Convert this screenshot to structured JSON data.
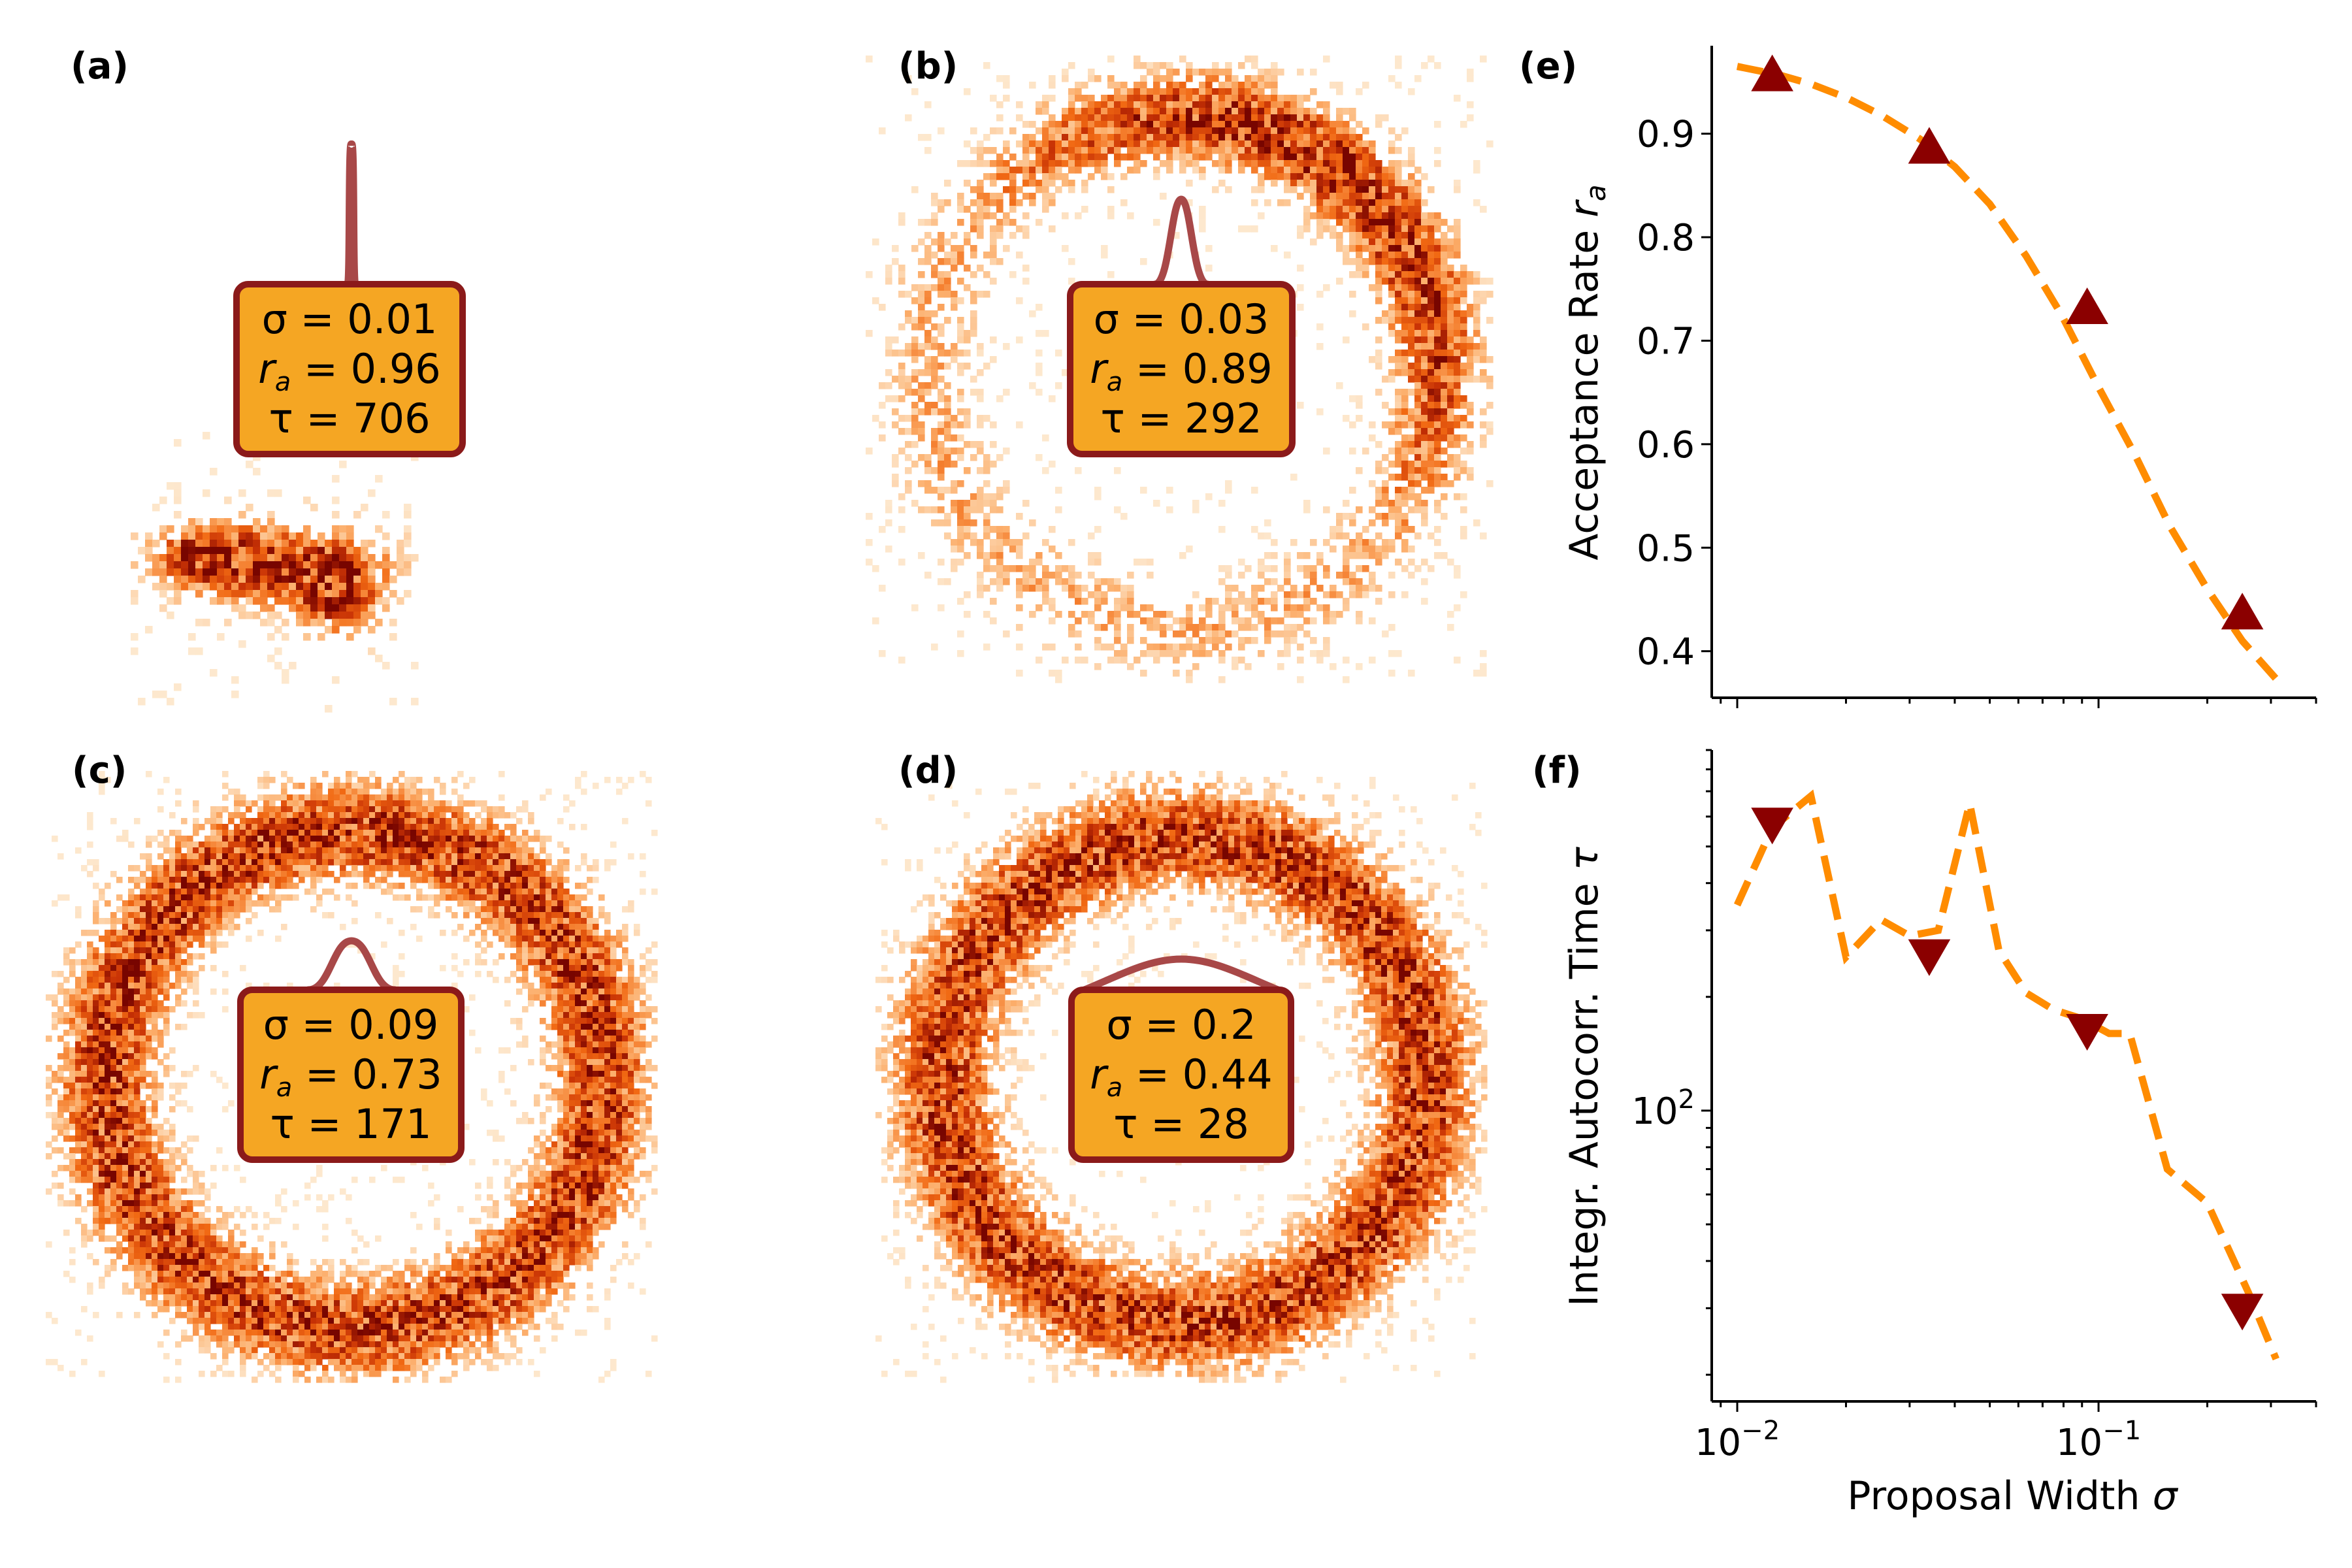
{
  "colors": {
    "heat_light": "#fde2c4",
    "heat_mid": "#f4781e",
    "heat_dark": "#5c0000",
    "box_fill": "#f5a623",
    "box_border": "#8b1a1a",
    "proposal_curve": "#a84848",
    "dashed_line": "#ff8c00",
    "marker": "#8b0000"
  },
  "panels": [
    {
      "letter": "(a)",
      "sigma": "σ = 0.01",
      "ra": "r",
      "ra_sub": "a",
      "ra_val": " = 0.96",
      "tau": "τ = 706"
    },
    {
      "letter": "(b)",
      "sigma": "σ = 0.03",
      "ra": "r",
      "ra_sub": "a",
      "ra_val": " = 0.89",
      "tau": "τ = 292"
    },
    {
      "letter": "(c)",
      "sigma": "σ = 0.09",
      "ra": "r",
      "ra_sub": "a",
      "ra_val": " = 0.73",
      "tau": "τ = 171"
    },
    {
      "letter": "(d)",
      "sigma": "σ = 0.2",
      "ra": "r",
      "ra_sub": "a",
      "ra_val": " = 0.44",
      "tau": "τ = 28"
    }
  ],
  "chart_data": [
    {
      "panel": "(e)",
      "type": "line",
      "x_scale": "log",
      "xlim": [
        0.0085,
        0.4
      ],
      "ylabel": "Acceptance Rate",
      "ylabel_sub": "a",
      "ylabel_var": "r",
      "ylim": [
        0.355,
        0.985
      ],
      "yticks": [
        "0.4",
        "0.5",
        "0.6",
        "0.7",
        "0.8",
        "0.9"
      ],
      "line": {
        "style": "dashed",
        "x": [
          0.01,
          0.013,
          0.016,
          0.02,
          0.025,
          0.032,
          0.04,
          0.05,
          0.063,
          0.079,
          0.1,
          0.126,
          0.158,
          0.2,
          0.25,
          0.316
        ],
        "y": [
          0.965,
          0.957,
          0.948,
          0.935,
          0.918,
          0.895,
          0.868,
          0.832,
          0.782,
          0.725,
          0.655,
          0.59,
          0.52,
          0.46,
          0.41,
          0.37
        ]
      },
      "markers": {
        "shape": "triangle-up",
        "x": [
          0.0125,
          0.034,
          0.093,
          0.25
        ],
        "y": [
          0.955,
          0.885,
          0.73,
          0.435
        ]
      }
    },
    {
      "panel": "(f)",
      "type": "line",
      "x_scale": "log",
      "y_scale": "log",
      "xlim": [
        0.0085,
        0.4
      ],
      "xlabel": "Proposal Width",
      "xlabel_var": "σ",
      "xtick_base": "10",
      "xtick_exps": [
        "−2",
        "−1"
      ],
      "ylabel": "Integr. Autocorr. Time",
      "ylabel_var": "τ",
      "ylim": [
        17,
        900
      ],
      "yticks": [
        "10",
        "2"
      ],
      "line": {
        "style": "dashed",
        "x": [
          0.01,
          0.0125,
          0.016,
          0.02,
          0.025,
          0.03,
          0.036,
          0.044,
          0.053,
          0.063,
          0.075,
          0.09,
          0.107,
          0.122,
          0.155,
          0.2,
          0.26,
          0.31
        ],
        "y": [
          350,
          560,
          680,
          255,
          320,
          290,
          300,
          650,
          265,
          205,
          185,
          175,
          160,
          160,
          70,
          57,
          33,
          22
        ]
      },
      "markers": {
        "shape": "triangle-down",
        "x": [
          0.0125,
          0.034,
          0.093,
          0.25
        ],
        "y": [
          580,
          260,
          165,
          30
        ]
      }
    }
  ]
}
